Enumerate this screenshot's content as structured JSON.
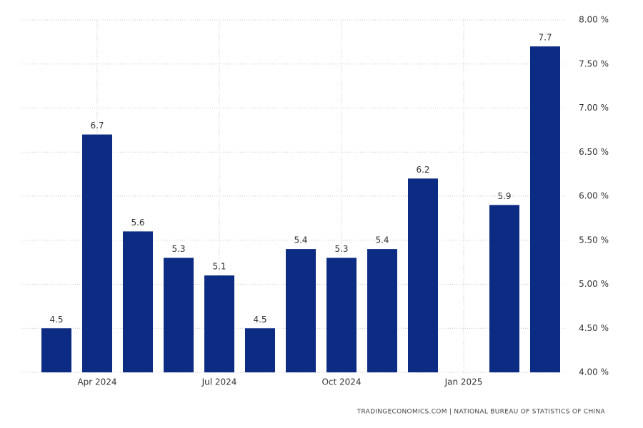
{
  "chart_data": {
    "type": "bar",
    "categories": [
      null,
      "Apr 2024",
      null,
      null,
      "Jul 2024",
      null,
      null,
      "Oct 2024",
      null,
      null,
      "Jan 2025",
      null,
      null
    ],
    "values": [
      4.5,
      6.7,
      5.6,
      5.3,
      5.1,
      4.5,
      5.4,
      5.3,
      5.4,
      6.2,
      null,
      5.9,
      7.7
    ],
    "color": "#0c2c84",
    "ylim": [
      4,
      8
    ],
    "yticks": [
      {
        "value": 4,
        "label": "4.00 %"
      },
      {
        "value": 4.5,
        "label": "4.50 %"
      },
      {
        "value": 5,
        "label": "5.00 %"
      },
      {
        "value": 5.5,
        "label": "5.50 %"
      },
      {
        "value": 6,
        "label": "6.00 %"
      },
      {
        "value": 6.5,
        "label": "6.50 %"
      },
      {
        "value": 7,
        "label": "7.00 %"
      },
      {
        "value": 7.5,
        "label": "7.50 %"
      },
      {
        "value": 8,
        "label": "8.00 %"
      }
    ],
    "grid": true,
    "source": "TRADINGECONOMICS.COM | NATIONAL BUREAU OF STATISTICS OF CHINA"
  }
}
